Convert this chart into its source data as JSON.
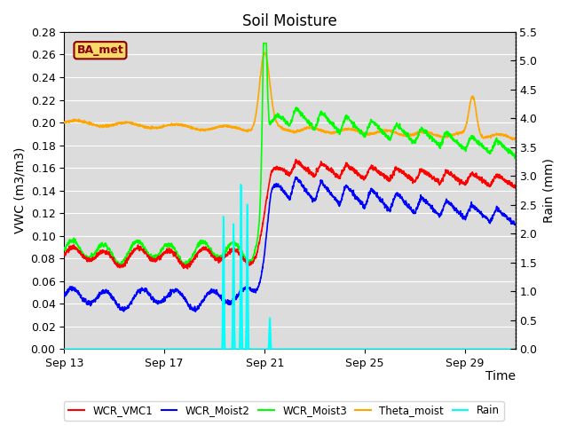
{
  "title": "Soil Moisture",
  "xlabel": "Time",
  "ylabel_left": "VWC (m3/m3)",
  "ylabel_right": "Rain (mm)",
  "ylim_left": [
    0.0,
    0.28
  ],
  "ylim_right": [
    0.0,
    5.5
  ],
  "yticks_left": [
    0.0,
    0.02,
    0.04,
    0.06,
    0.08,
    0.1,
    0.12,
    0.14,
    0.16,
    0.18,
    0.2,
    0.22,
    0.24,
    0.26,
    0.28
  ],
  "yticks_right": [
    0.0,
    0.5,
    1.0,
    1.5,
    2.0,
    2.5,
    3.0,
    3.5,
    4.0,
    4.5,
    5.0,
    5.5
  ],
  "xtick_labels": [
    "Sep 13",
    "Sep 17",
    "Sep 21",
    "Sep 25",
    "Sep 29"
  ],
  "xtick_positions": [
    0,
    4,
    8,
    12,
    16
  ],
  "legend_labels": [
    "WCR_VMC1",
    "WCR_Moist2",
    "WCR_Moist3",
    "Theta_moist",
    "Rain"
  ],
  "legend_colors": [
    "red",
    "blue",
    "green",
    "orange",
    "cyan"
  ],
  "box_label": "BA_met",
  "plot_bg_color": "#dcdcdc",
  "grid_color": "white",
  "title_fontsize": 12,
  "axis_label_fontsize": 10,
  "tick_fontsize": 9
}
